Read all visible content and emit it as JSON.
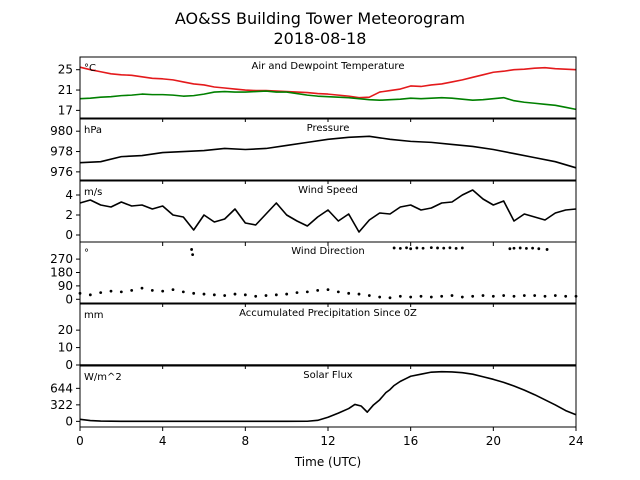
{
  "figure": {
    "title_line1": "AO&SS Building Tower Meteorogram",
    "title_line2": "2018-08-18",
    "xlabel": "Time (UTC)",
    "x_ticks": [
      0,
      4,
      8,
      12,
      16,
      20,
      24
    ],
    "x_tick_labels": [
      "0",
      "4",
      "8",
      "12",
      "16",
      "20",
      "24"
    ]
  },
  "chart_data": [
    {
      "type": "line",
      "title": "Air and Dewpoint Temperature",
      "unit_label": "°C",
      "xlim": [
        0,
        24
      ],
      "ylim": [
        15.5,
        27.5
      ],
      "y_ticks": [
        17,
        21,
        25
      ],
      "y_tick_labels": [
        "17",
        "21",
        "25"
      ],
      "series": [
        {
          "color": "#e41a1c",
          "x": [
            0,
            0.5,
            1,
            1.5,
            2,
            2.5,
            3,
            3.5,
            4,
            4.5,
            5,
            5.5,
            6,
            6.5,
            7,
            7.5,
            8,
            8.5,
            9,
            9.5,
            10,
            10.5,
            11,
            11.5,
            12,
            12.5,
            13,
            13.5,
            14,
            14.5,
            15,
            15.5,
            16,
            16.5,
            17,
            17.5,
            18,
            18.5,
            19,
            19.5,
            20,
            20.5,
            21,
            21.5,
            22,
            22.5,
            23,
            23.5,
            24
          ],
          "y": [
            25.5,
            25.0,
            24.6,
            24.2,
            24.0,
            23.9,
            23.6,
            23.3,
            23.2,
            23.0,
            22.6,
            22.2,
            22.0,
            21.6,
            21.4,
            21.2,
            21.0,
            20.9,
            20.9,
            20.8,
            20.7,
            20.6,
            20.5,
            20.3,
            20.2,
            20.0,
            19.8,
            19.5,
            19.6,
            20.6,
            20.9,
            21.2,
            21.8,
            21.7,
            22.0,
            22.2,
            22.6,
            23.0,
            23.5,
            24.0,
            24.5,
            24.7,
            25.0,
            25.1,
            25.3,
            25.4,
            25.2,
            25.1,
            25.0
          ]
        },
        {
          "color": "#008000",
          "x": [
            0,
            0.5,
            1,
            1.5,
            2,
            2.5,
            3,
            3.5,
            4,
            4.5,
            5,
            5.5,
            6,
            6.5,
            7,
            7.5,
            8,
            8.5,
            9,
            9.5,
            10,
            10.5,
            11,
            11.5,
            12,
            12.5,
            13,
            13.5,
            14,
            14.5,
            15,
            15.5,
            16,
            16.5,
            17,
            17.5,
            18,
            18.5,
            19,
            19.5,
            20,
            20.5,
            21,
            21.5,
            22,
            22.5,
            23,
            23.5,
            24
          ],
          "y": [
            19.3,
            19.4,
            19.6,
            19.7,
            19.9,
            20.0,
            20.2,
            20.1,
            20.1,
            20.0,
            19.8,
            19.9,
            20.2,
            20.6,
            20.7,
            20.6,
            20.6,
            20.7,
            20.8,
            20.6,
            20.6,
            20.3,
            20.0,
            19.8,
            19.7,
            19.6,
            19.5,
            19.3,
            19.1,
            19.0,
            19.1,
            19.2,
            19.4,
            19.3,
            19.4,
            19.5,
            19.4,
            19.2,
            19.0,
            19.1,
            19.3,
            19.5,
            18.9,
            18.6,
            18.4,
            18.2,
            18.0,
            17.6,
            17.2
          ]
        }
      ]
    },
    {
      "type": "line",
      "title": "Pressure",
      "unit_label": "hPa",
      "xlim": [
        0,
        24
      ],
      "ylim": [
        975.2,
        981.2
      ],
      "y_ticks": [
        976,
        978,
        980
      ],
      "y_tick_labels": [
        "976",
        "978",
        "980"
      ],
      "series": [
        {
          "color": "#000000",
          "x": [
            0,
            1,
            2,
            3,
            4,
            5,
            6,
            7,
            8,
            9,
            10,
            11,
            12,
            13,
            14,
            15,
            16,
            17,
            18,
            19,
            20,
            21,
            22,
            23,
            24
          ],
          "y": [
            976.9,
            977.0,
            977.5,
            977.6,
            977.9,
            978.0,
            978.1,
            978.3,
            978.2,
            978.3,
            978.6,
            978.9,
            979.2,
            979.4,
            979.5,
            979.2,
            979.0,
            978.9,
            978.7,
            978.5,
            978.2,
            977.8,
            977.4,
            977.0,
            976.4
          ]
        }
      ]
    },
    {
      "type": "line",
      "title": "Wind Speed",
      "unit_label": "m/s",
      "xlim": [
        0,
        24
      ],
      "ylim": [
        -0.7,
        5.4
      ],
      "y_ticks": [
        0,
        2,
        4
      ],
      "y_tick_labels": [
        "0",
        "2",
        "4"
      ],
      "series": [
        {
          "color": "#000000",
          "x": [
            0,
            0.5,
            1,
            1.5,
            2,
            2.5,
            3,
            3.5,
            4,
            4.5,
            5,
            5.5,
            6,
            6.5,
            7,
            7.5,
            8,
            8.5,
            9,
            9.5,
            10,
            10.5,
            11,
            11.5,
            12,
            12.5,
            13,
            13.5,
            14,
            14.5,
            15,
            15.5,
            16,
            16.5,
            17,
            17.5,
            18,
            18.5,
            19,
            19.5,
            20,
            20.5,
            21,
            21.5,
            22,
            22.5,
            23,
            23.5,
            24
          ],
          "y": [
            3.2,
            3.5,
            3.0,
            2.8,
            3.3,
            2.9,
            3.0,
            2.6,
            2.9,
            2.0,
            1.8,
            0.5,
            2.0,
            1.3,
            1.6,
            2.6,
            1.2,
            1.0,
            2.1,
            3.2,
            2.0,
            1.4,
            0.9,
            1.8,
            2.5,
            1.4,
            2.1,
            0.3,
            1.5,
            2.2,
            2.1,
            2.8,
            3.0,
            2.5,
            2.7,
            3.2,
            3.3,
            4.0,
            4.5,
            3.6,
            3.0,
            3.4,
            1.4,
            2.1,
            1.8,
            1.5,
            2.2,
            2.5,
            2.6
          ]
        }
      ]
    },
    {
      "type": "scatter",
      "title": "Wind Direction",
      "unit_label": "°",
      "xlim": [
        0,
        24
      ],
      "ylim": [
        -25,
        385
      ],
      "y_ticks": [
        0,
        90,
        180,
        270
      ],
      "y_tick_labels": [
        "0",
        "90",
        "180",
        "270"
      ],
      "series": [
        {
          "color": "#000000",
          "x": [
            0,
            0.5,
            1,
            1.5,
            2,
            2.5,
            3,
            3.5,
            4,
            4.5,
            5,
            5.5,
            6,
            6.5,
            7,
            7.5,
            8,
            8.5,
            9,
            9.5,
            10,
            10.5,
            11,
            11.5,
            12,
            12.5,
            13,
            13.5,
            14,
            14.5,
            15,
            15.5,
            16,
            16.5,
            17,
            17.5,
            18,
            18.5,
            19,
            19.5,
            20,
            20.5,
            21,
            21.5,
            22,
            22.5,
            23,
            23.5,
            24
          ],
          "y": [
            40,
            30,
            45,
            55,
            50,
            60,
            75,
            60,
            55,
            65,
            50,
            40,
            35,
            30,
            25,
            35,
            30,
            20,
            25,
            30,
            35,
            45,
            50,
            60,
            65,
            50,
            40,
            35,
            25,
            15,
            10,
            20,
            15,
            20,
            15,
            20,
            25,
            15,
            20,
            25,
            20,
            25,
            20,
            25,
            25,
            20,
            25,
            20,
            20
          ]
        },
        {
          "color": "#000000",
          "x": [
            5.4,
            5.45,
            15.2,
            15.5,
            15.8,
            16.0,
            16.3,
            16.6,
            17.0,
            17.3,
            17.6,
            17.9,
            18.2,
            18.5,
            20.8,
            21.0,
            21.3,
            21.6,
            21.9,
            22.2,
            22.6
          ],
          "y": [
            335,
            300,
            345,
            342,
            346,
            340,
            345,
            343,
            347,
            345,
            344,
            346,
            342,
            345,
            340,
            343,
            345,
            342,
            344,
            340,
            335
          ]
        }
      ]
    },
    {
      "type": "line",
      "title": "Accumulated Precipitation Since 0Z",
      "unit_label": "mm",
      "xlim": [
        0,
        24
      ],
      "ylim": [
        0,
        35
      ],
      "y_ticks": [
        0,
        10,
        20
      ],
      "y_tick_labels": [
        "0",
        "10",
        "20"
      ],
      "series": [
        {
          "color": "#000000",
          "x": [
            0,
            24
          ],
          "y": [
            0,
            0
          ]
        }
      ]
    },
    {
      "type": "line",
      "title": "Solar Flux",
      "unit_label": "W/m^2",
      "xlim": [
        0,
        24
      ],
      "ylim": [
        -110,
        1080
      ],
      "y_ticks": [
        0,
        322,
        644
      ],
      "y_tick_labels": [
        "0",
        "322",
        "644"
      ],
      "series": [
        {
          "color": "#000000",
          "x": [
            0,
            0.5,
            1,
            2,
            4,
            6,
            8,
            10,
            11,
            11.5,
            12,
            12.5,
            13,
            13.3,
            13.6,
            13.9,
            14.2,
            14.5,
            14.8,
            15.0,
            15.2,
            15.5,
            15.8,
            16.0,
            16.5,
            17.0,
            17.5,
            18.0,
            18.5,
            19.0,
            19.5,
            20.0,
            20.5,
            21.0,
            21.5,
            22.0,
            22.5,
            23.0,
            23.5,
            24.0
          ],
          "y": [
            40,
            15,
            5,
            0,
            0,
            0,
            0,
            0,
            2,
            20,
            80,
            160,
            250,
            330,
            300,
            180,
            320,
            420,
            560,
            620,
            700,
            780,
            840,
            880,
            920,
            960,
            970,
            965,
            950,
            920,
            870,
            820,
            760,
            690,
            610,
            520,
            420,
            320,
            210,
            130
          ]
        }
      ]
    }
  ]
}
